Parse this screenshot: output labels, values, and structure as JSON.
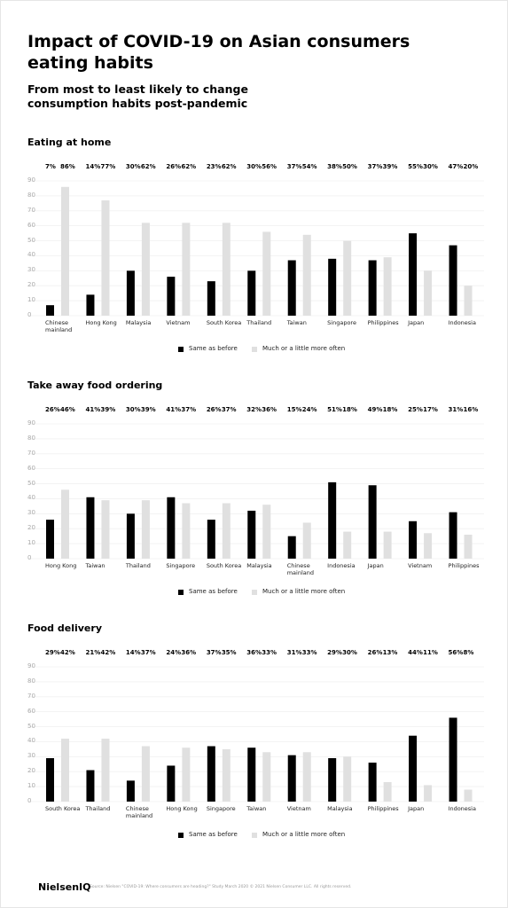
{
  "title": "Impact of COVID-19 on Asian consumers eating habits",
  "subtitle": "From most to least likely to change consumption habits post-pandemic",
  "chart_data": [
    {
      "type": "bar",
      "title": "Eating at home",
      "categories": [
        "Chinese mainland",
        "Hong Kong",
        "Malaysia",
        "Vietnam",
        "South Korea",
        "Thailand",
        "Taiwan",
        "Singapore",
        "Philippines",
        "Japan",
        "Indonesia"
      ],
      "series": [
        {
          "name": "Same as before",
          "color": "#000000",
          "values": [
            7,
            14,
            30,
            26,
            23,
            30,
            37,
            38,
            37,
            55,
            47
          ],
          "value_labels": [
            "7%",
            "14%",
            "30%",
            "26%",
            "23%",
            "30%",
            "37%",
            "38%",
            "37%",
            "55%",
            "47%"
          ]
        },
        {
          "name": "Much or a little more often",
          "color": "#e0e0e0",
          "values": [
            86,
            77,
            62,
            62,
            62,
            56,
            54,
            50,
            39,
            30,
            20
          ],
          "value_labels": [
            "86%",
            "77%",
            "62%",
            "62%",
            "62%",
            "56%",
            "54%",
            "50%",
            "39%",
            "30%",
            "20%"
          ]
        }
      ],
      "ylim": [
        0,
        90
      ],
      "yticks": [
        0,
        10,
        20,
        30,
        40,
        50,
        60,
        70,
        80,
        90
      ],
      "grid": true,
      "legend": "bottom"
    },
    {
      "type": "bar",
      "title": "Take away food ordering",
      "categories": [
        "Hong Kong",
        "Taiwan",
        "Thailand",
        "Singapore",
        "South Korea",
        "Malaysia",
        "Chinese mainland",
        "Indonesia",
        "Japan",
        "Vietnam",
        "Philippines"
      ],
      "series": [
        {
          "name": "Same as before",
          "color": "#000000",
          "values": [
            26,
            41,
            30,
            41,
            26,
            32,
            15,
            51,
            49,
            25,
            31
          ],
          "value_labels": [
            "26%",
            "41%",
            "30%",
            "41%",
            "26%",
            "32%",
            "15%",
            "51%",
            "49%",
            "25%",
            "31%"
          ]
        },
        {
          "name": "Much or a little more often",
          "color": "#e0e0e0",
          "values": [
            46,
            39,
            39,
            37,
            37,
            36,
            24,
            18,
            18,
            17,
            16
          ],
          "value_labels": [
            "46%",
            "39%",
            "39%",
            "37%",
            "37%",
            "36%",
            "24%",
            "18%",
            "18%",
            "17%",
            "16%"
          ]
        }
      ],
      "ylim": [
        0,
        90
      ],
      "yticks": [
        0,
        10,
        20,
        30,
        40,
        50,
        60,
        70,
        80,
        90
      ],
      "grid": true,
      "legend": "bottom"
    },
    {
      "type": "bar",
      "title": "Food delivery",
      "categories": [
        "South Korea",
        "Thailand",
        "Chinese mainland",
        "Hong Kong",
        "Singapore",
        "Taiwan",
        "Vietnam",
        "Malaysia",
        "Philippines",
        "Japan",
        "Indonesia"
      ],
      "series": [
        {
          "name": "Same as before",
          "color": "#000000",
          "values": [
            29,
            21,
            14,
            24,
            37,
            36,
            31,
            29,
            26,
            44,
            56
          ],
          "value_labels": [
            "29%",
            "21%",
            "14%",
            "24%",
            "37%",
            "36%",
            "31%",
            "29%",
            "26%",
            "44%",
            "56%"
          ]
        },
        {
          "name": "Much or a little more often",
          "color": "#e0e0e0",
          "values": [
            42,
            42,
            37,
            36,
            35,
            33,
            33,
            30,
            13,
            11,
            8
          ],
          "value_labels": [
            "42%",
            "42%",
            "37%",
            "36%",
            "35%",
            "33%",
            "33%",
            "30%",
            "13%",
            "11%",
            "8%"
          ]
        }
      ],
      "ylim": [
        0,
        90
      ],
      "yticks": [
        0,
        10,
        20,
        30,
        40,
        50,
        60,
        70,
        80,
        90
      ],
      "grid": true,
      "legend": "bottom"
    }
  ],
  "footer": {
    "logo": "NielsenIQ",
    "source": "Source: Nielsen \"COVID-19: Where consumers are heading?\" Study March 2020 © 2021 Nielsen Consumer LLC. All rights reserved."
  }
}
